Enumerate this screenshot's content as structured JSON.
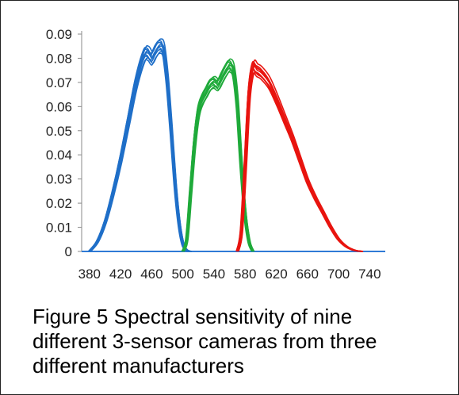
{
  "chart_data": {
    "type": "line",
    "title": "",
    "xlabel": "",
    "ylabel": "",
    "xlim": [
      370,
      760
    ],
    "ylim": [
      0,
      0.09
    ],
    "x_ticks": [
      380,
      420,
      460,
      500,
      540,
      580,
      620,
      660,
      700,
      740
    ],
    "y_ticks": [
      0,
      0.01,
      0.02,
      0.03,
      0.04,
      0.05,
      0.06,
      0.07,
      0.08,
      0.09
    ],
    "y_tick_labels": [
      "0",
      "0.01",
      "0.02",
      "0.03",
      "0.04",
      "0.05",
      "0.06",
      "0.07",
      "0.08",
      "0.09"
    ],
    "x_tick_labels": [
      "380",
      "420",
      "460",
      "500",
      "540",
      "580",
      "620",
      "660",
      "700",
      "740"
    ],
    "grid": false,
    "legend": "none",
    "series_groups": [
      {
        "color": "#1f6fc8",
        "x": [
          380,
          390,
          400,
          410,
          420,
          430,
          440,
          450,
          455,
          460,
          465,
          470,
          475,
          480,
          485,
          490,
          495,
          500,
          505,
          510
        ],
        "y": [
          0,
          0.004,
          0.012,
          0.024,
          0.038,
          0.054,
          0.07,
          0.081,
          0.082,
          0.08,
          0.083,
          0.085,
          0.083,
          0.07,
          0.05,
          0.028,
          0.012,
          0.003,
          0.0005,
          0
        ],
        "count": 9
      },
      {
        "color": "#1faa3a",
        "x": [
          500,
          505,
          510,
          515,
          520,
          525,
          530,
          535,
          540,
          545,
          550,
          555,
          560,
          565,
          570,
          575,
          580,
          585,
          590
        ],
        "y": [
          0,
          0.005,
          0.025,
          0.045,
          0.058,
          0.063,
          0.066,
          0.069,
          0.07,
          0.069,
          0.072,
          0.075,
          0.077,
          0.074,
          0.06,
          0.035,
          0.015,
          0.004,
          0
        ],
        "count": 9
      },
      {
        "color": "#e8140f",
        "x": [
          570,
          575,
          580,
          585,
          590,
          595,
          600,
          610,
          620,
          630,
          640,
          650,
          660,
          670,
          680,
          690,
          700,
          710,
          720,
          730
        ],
        "y": [
          0,
          0.008,
          0.035,
          0.065,
          0.076,
          0.075,
          0.074,
          0.07,
          0.063,
          0.055,
          0.047,
          0.038,
          0.029,
          0.022,
          0.016,
          0.01,
          0.005,
          0.002,
          0.0005,
          0
        ],
        "count": 9
      }
    ],
    "axis_color": "#2f7ad6"
  },
  "caption": {
    "line1": "Figure 5 Spectral sensitivity of nine",
    "line2": "different 3-sensor cameras from three",
    "line3": "different manufacturers"
  }
}
